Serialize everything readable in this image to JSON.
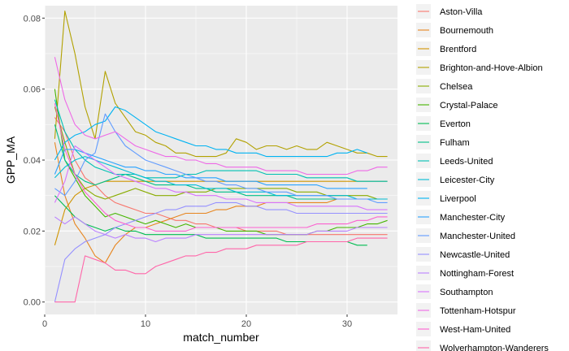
{
  "chart_data": {
    "type": "line",
    "xlabel": "match_number",
    "ylabel": "GPP_MA",
    "xlim": [
      0,
      35
    ],
    "ylim": [
      -0.0035,
      0.0835
    ],
    "x_ticks": [
      0,
      10,
      20,
      30
    ],
    "y_ticks": [
      0.0,
      0.02,
      0.04,
      0.06,
      0.08
    ],
    "y_tick_labels": [
      "0.00",
      "0.02",
      "0.04",
      "0.06",
      "0.08"
    ],
    "grid": true,
    "legend_position": "right",
    "series": [
      {
        "name": "Aston-Villa",
        "color": "#F8766D",
        "values": [
          0.052,
          0.048,
          0.04,
          0.035,
          0.033,
          0.03,
          0.028,
          0.027,
          0.026,
          0.025,
          0.025,
          0.024,
          0.023,
          0.023,
          0.022,
          0.022,
          0.021,
          0.021,
          0.021,
          0.02,
          0.02,
          0.02,
          0.02,
          0.019,
          0.019,
          0.019,
          0.019,
          0.019,
          0.019,
          0.019,
          0.019,
          0.019,
          0.019,
          0.019
        ]
      },
      {
        "name": "Bournemouth",
        "color": "#E7851E",
        "values": [
          0.045,
          0.03,
          0.022,
          0.018,
          0.013,
          0.011,
          0.016,
          0.019,
          0.021,
          0.021,
          0.022,
          0.023,
          0.024,
          0.025,
          0.025,
          0.025,
          0.026,
          0.026,
          0.027,
          0.027,
          0.027,
          0.028,
          0.028,
          0.028,
          0.028,
          0.028,
          0.028,
          0.028,
          0.029,
          0.029,
          0.029,
          0.029,
          0.029,
          0.029
        ]
      },
      {
        "name": "Brentford",
        "color": "#D09400",
        "values": [
          0.016,
          0.026,
          0.03,
          0.032,
          0.033,
          0.034,
          0.034,
          0.034,
          0.034,
          0.034,
          0.034,
          0.034,
          0.034,
          0.034,
          0.034,
          0.034,
          0.034,
          0.034,
          0.034,
          0.034,
          0.034,
          0.034,
          0.034,
          0.034,
          0.034,
          0.034,
          0.034,
          0.034,
          0.034,
          0.034,
          0.034,
          0.034,
          0.034,
          0.034
        ]
      },
      {
        "name": "Brighton-and-Hove-Albion",
        "color": "#B2A100",
        "values": [
          0.046,
          0.082,
          0.07,
          0.055,
          0.046,
          0.065,
          0.056,
          0.052,
          0.048,
          0.047,
          0.045,
          0.044,
          0.042,
          0.042,
          0.041,
          0.041,
          0.041,
          0.042,
          0.046,
          0.045,
          0.043,
          0.044,
          0.044,
          0.043,
          0.044,
          0.043,
          0.043,
          0.045,
          0.044,
          0.043,
          0.042,
          0.042,
          0.041,
          0.041
        ]
      },
      {
        "name": "Chelsea",
        "color": "#89AC00",
        "values": [
          0.055,
          0.045,
          0.036,
          0.032,
          0.03,
          0.029,
          0.03,
          0.031,
          0.032,
          0.031,
          0.03,
          0.03,
          0.03,
          0.031,
          0.031,
          0.031,
          0.032,
          0.032,
          0.032,
          0.032,
          0.032,
          0.032,
          0.032,
          0.032,
          0.031,
          0.031,
          0.031,
          0.03,
          0.03,
          0.03,
          0.03,
          0.03,
          0.029,
          0.029
        ]
      },
      {
        "name": "Crystal-Palace",
        "color": "#45B500",
        "values": [
          0.06,
          0.04,
          0.035,
          0.03,
          0.027,
          0.024,
          0.025,
          0.024,
          0.023,
          0.022,
          0.023,
          0.022,
          0.021,
          0.022,
          0.021,
          0.021,
          0.021,
          0.02,
          0.02,
          0.02,
          0.02,
          0.019,
          0.019,
          0.019,
          0.019,
          0.019,
          0.02,
          0.02,
          0.021,
          0.021,
          0.021,
          0.022,
          0.022,
          0.023
        ]
      },
      {
        "name": "Everton",
        "color": "#00BC51",
        "values": [
          0.03,
          0.027,
          0.024,
          0.022,
          0.021,
          0.02,
          0.021,
          0.02,
          0.02,
          0.019,
          0.019,
          0.019,
          0.019,
          0.019,
          0.019,
          0.018,
          0.018,
          0.018,
          0.018,
          0.018,
          0.018,
          0.018,
          0.018,
          0.017,
          0.017,
          0.017,
          0.017,
          0.017,
          0.017,
          0.017,
          0.016,
          0.016
        ]
      },
      {
        "name": "Fulham",
        "color": "#00C087",
        "values": [
          0.05,
          0.04,
          0.036,
          0.034,
          0.033,
          0.034,
          0.035,
          0.036,
          0.035,
          0.034,
          0.033,
          0.033,
          0.033,
          0.033,
          0.032,
          0.032,
          0.031,
          0.031,
          0.031,
          0.03,
          0.03,
          0.03,
          0.03,
          0.03,
          0.029,
          0.029,
          0.029,
          0.029,
          0.029,
          0.029,
          0.029,
          0.029,
          0.029,
          0.029
        ]
      },
      {
        "name": "Leeds-United",
        "color": "#00C0B2",
        "values": [
          0.057,
          0.048,
          0.043,
          0.04,
          0.038,
          0.037,
          0.036,
          0.036,
          0.036,
          0.035,
          0.035,
          0.035,
          0.035,
          0.036,
          0.036,
          0.037,
          0.037,
          0.037,
          0.037,
          0.037,
          0.037,
          0.036,
          0.036,
          0.036,
          0.036,
          0.035,
          0.035,
          0.035,
          0.035,
          0.035,
          0.034,
          0.034,
          0.034,
          0.034
        ]
      },
      {
        "name": "Leicester-City",
        "color": "#00BCD6",
        "values": [
          0.035,
          0.038,
          0.04,
          0.041,
          0.04,
          0.039,
          0.038,
          0.037,
          0.036,
          0.035,
          0.034,
          0.034,
          0.033,
          0.033,
          0.033,
          0.032,
          0.032,
          0.032,
          0.031,
          0.031,
          0.031,
          0.031,
          0.03,
          0.03,
          0.03,
          0.03,
          0.03,
          0.03,
          0.03,
          0.03,
          0.029,
          0.029,
          0.029,
          0.029
        ]
      },
      {
        "name": "Liverpool",
        "color": "#00B3F2",
        "values": [
          0.04,
          0.045,
          0.047,
          0.048,
          0.05,
          0.051,
          0.055,
          0.054,
          0.052,
          0.05,
          0.048,
          0.047,
          0.046,
          0.045,
          0.044,
          0.044,
          0.043,
          0.043,
          0.042,
          0.042,
          0.042,
          0.041,
          0.041,
          0.041,
          0.041,
          0.041,
          0.041,
          0.041,
          0.042,
          0.042,
          0.043,
          0.042
        ]
      },
      {
        "name": "Manchester-City",
        "color": "#29A3FF",
        "values": [
          0.036,
          0.043,
          0.043,
          0.042,
          0.041,
          0.04,
          0.039,
          0.038,
          0.038,
          0.037,
          0.037,
          0.036,
          0.036,
          0.035,
          0.035,
          0.035,
          0.035,
          0.034,
          0.034,
          0.034,
          0.034,
          0.033,
          0.033,
          0.033,
          0.033,
          0.033,
          0.033,
          0.032,
          0.032,
          0.032,
          0.032,
          0.032
        ]
      },
      {
        "name": "Manchester-United",
        "color": "#619CFF",
        "values": [
          0.032,
          0.03,
          0.034,
          0.04,
          0.042,
          0.053,
          0.048,
          0.044,
          0.042,
          0.04,
          0.039,
          0.038,
          0.037,
          0.036,
          0.035,
          0.034,
          0.034,
          0.033,
          0.033,
          0.032,
          0.032,
          0.031,
          0.031,
          0.031,
          0.03,
          0.03,
          0.03,
          0.03,
          0.029,
          0.029,
          0.029,
          0.029,
          0.028,
          0.028
        ]
      },
      {
        "name": "Newcastle-United",
        "color": "#9590FF",
        "values": [
          0.0,
          0.012,
          0.015,
          0.017,
          0.018,
          0.019,
          0.021,
          0.022,
          0.023,
          0.024,
          0.025,
          0.026,
          0.026,
          0.027,
          0.027,
          0.027,
          0.028,
          0.028,
          0.028,
          0.027,
          0.027,
          0.026,
          0.026,
          0.026,
          0.025,
          0.025,
          0.025,
          0.025,
          0.025,
          0.025,
          0.025,
          0.025,
          0.025,
          0.025
        ]
      },
      {
        "name": "Nottingham-Forest",
        "color": "#BA81FF",
        "values": [
          0.024,
          0.022,
          0.024,
          0.022,
          0.02,
          0.019,
          0.018,
          0.019,
          0.018,
          0.018,
          0.017,
          0.018,
          0.018,
          0.018,
          0.019,
          0.019,
          0.019,
          0.019,
          0.019,
          0.019,
          0.019,
          0.019,
          0.019,
          0.019,
          0.019,
          0.019,
          0.02,
          0.02,
          0.02,
          0.02,
          0.021,
          0.021,
          0.021,
          0.021
        ]
      },
      {
        "name": "Southampton",
        "color": "#D874FD",
        "values": [
          0.028,
          0.034,
          0.044,
          0.042,
          0.04,
          0.038,
          0.036,
          0.035,
          0.034,
          0.033,
          0.032,
          0.032,
          0.031,
          0.031,
          0.03,
          0.03,
          0.03,
          0.029,
          0.029,
          0.029,
          0.028,
          0.028,
          0.028,
          0.028,
          0.027,
          0.027,
          0.027,
          0.027,
          0.027,
          0.027,
          0.027,
          0.026,
          0.026,
          0.026
        ]
      },
      {
        "name": "Tottenham-Hotspur",
        "color": "#EE69E7",
        "values": [
          0.069,
          0.057,
          0.05,
          0.047,
          0.046,
          0.047,
          0.048,
          0.046,
          0.044,
          0.043,
          0.042,
          0.041,
          0.041,
          0.04,
          0.04,
          0.039,
          0.039,
          0.038,
          0.038,
          0.038,
          0.038,
          0.037,
          0.037,
          0.037,
          0.037,
          0.036,
          0.036,
          0.036,
          0.036,
          0.036,
          0.037,
          0.037,
          0.038,
          0.038
        ]
      },
      {
        "name": "West-Ham-United",
        "color": "#FC61D0",
        "values": [
          0.056,
          0.043,
          0.036,
          0.031,
          0.028,
          0.025,
          0.023,
          0.022,
          0.021,
          0.021,
          0.02,
          0.02,
          0.02,
          0.02,
          0.021,
          0.021,
          0.021,
          0.021,
          0.021,
          0.021,
          0.021,
          0.021,
          0.021,
          0.021,
          0.021,
          0.021,
          0.022,
          0.022,
          0.022,
          0.022,
          0.023,
          0.023,
          0.024,
          0.024
        ]
      },
      {
        "name": "Wolverhampton-Wanderers",
        "color": "#FF66A9",
        "values": [
          0.0,
          0.0,
          0.0,
          0.013,
          0.012,
          0.011,
          0.009,
          0.009,
          0.008,
          0.008,
          0.01,
          0.011,
          0.012,
          0.013,
          0.013,
          0.014,
          0.014,
          0.015,
          0.015,
          0.015,
          0.016,
          0.016,
          0.016,
          0.016,
          0.016,
          0.017,
          0.017,
          0.017,
          0.017,
          0.017,
          0.018,
          0.018,
          0.018,
          0.018
        ]
      }
    ]
  }
}
